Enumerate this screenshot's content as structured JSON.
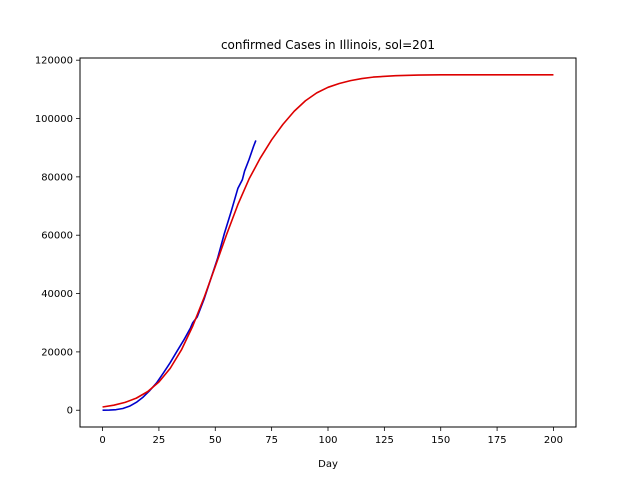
{
  "chart_data": {
    "type": "line",
    "title": "confirmed Cases in Illinois, sol=201",
    "xlabel": "Day",
    "ylabel": "",
    "xlim": [
      -10,
      210
    ],
    "ylim": [
      -5750,
      120750
    ],
    "xticks": [
      0,
      25,
      50,
      75,
      100,
      125,
      150,
      175,
      200
    ],
    "yticks": [
      0,
      20000,
      40000,
      60000,
      80000,
      100000,
      120000
    ],
    "xtick_labels": [
      "0",
      "25",
      "50",
      "75",
      "100",
      "125",
      "150",
      "175",
      "200"
    ],
    "ytick_labels": [
      "0",
      "20000",
      "40000",
      "60000",
      "80000",
      "100000",
      "120000"
    ],
    "grid": false,
    "series": [
      {
        "color": "#0000cc",
        "x": [
          0,
          3,
          6,
          9,
          12,
          15,
          18,
          21,
          24,
          27,
          30,
          33,
          36,
          39,
          40,
          42,
          45,
          48,
          51,
          54,
          57,
          60,
          62,
          63,
          65,
          67,
          68
        ],
        "y": [
          0,
          50,
          200,
          600,
          1400,
          2700,
          4500,
          6800,
          9400,
          12800,
          16300,
          20200,
          24000,
          28200,
          30000,
          32000,
          38000,
          45000,
          52000,
          60500,
          68000,
          76000,
          79000,
          82000,
          86000,
          90500,
          92500
        ]
      },
      {
        "color": "#dd0000",
        "x": [
          0,
          5,
          10,
          15,
          20,
          25,
          30,
          35,
          40,
          45,
          50,
          55,
          60,
          65,
          70,
          75,
          80,
          85,
          90,
          95,
          100,
          105,
          110,
          115,
          120,
          130,
          140,
          150,
          160,
          170,
          180,
          190,
          200
        ],
        "y": [
          1100,
          1720,
          2680,
          4150,
          6380,
          9670,
          14350,
          20700,
          28830,
          38530,
          49260,
          60200,
          70450,
          79300,
          86500,
          92700,
          98000,
          102500,
          106100,
          108800,
          110700,
          112000,
          113000,
          113700,
          114200,
          114700,
          114900,
          115000,
          115000,
          115000,
          115000,
          115000,
          115000
        ]
      }
    ]
  }
}
